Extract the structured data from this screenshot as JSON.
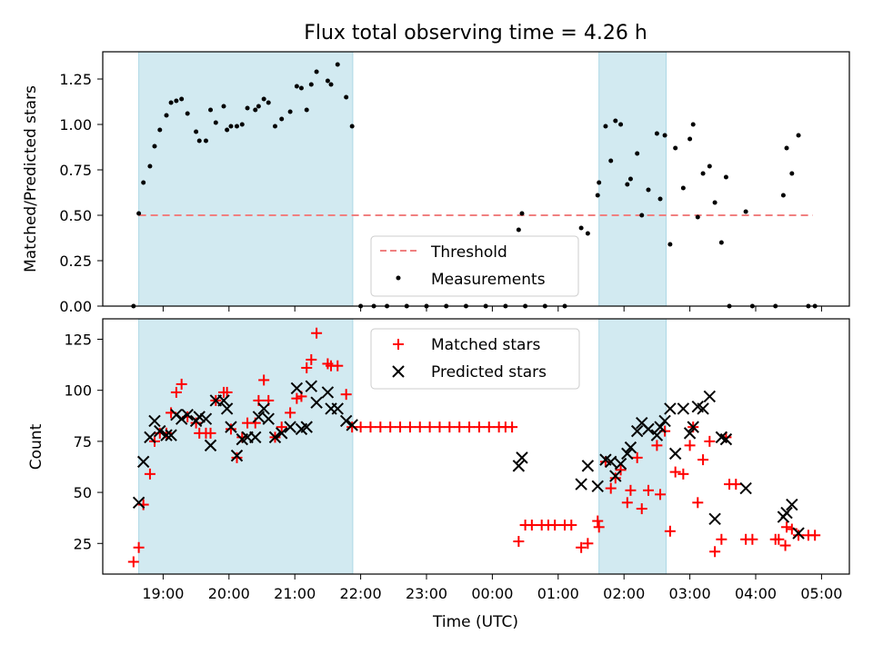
{
  "figure": {
    "title": "Flux total observing time = 4.26 h",
    "xlabel": "Time (UTC)",
    "x_ticks": [
      "19:00",
      "20:00",
      "21:00",
      "22:00",
      "23:00",
      "00:00",
      "01:00",
      "02:00",
      "03:00",
      "04:00",
      "05:00"
    ]
  },
  "chart_data": [
    {
      "type": "scatter",
      "x_unit": "hours after 18:00 UTC",
      "ylabel": "Matched/Predicted stars",
      "ylim": [
        0,
        1.4
      ],
      "y_ticks": [
        "0.00",
        "0.25",
        "0.50",
        "0.75",
        "1.00",
        "1.25"
      ],
      "shaded_intervals": [
        [
          0.63,
          3.88
        ],
        [
          7.62,
          8.64
        ]
      ],
      "threshold": {
        "name": "Threshold",
        "value": 0.5,
        "x_range": [
          0.63,
          10.87
        ],
        "color": "#f08080"
      },
      "legend": {
        "placement": "lower-center",
        "entries": [
          "Threshold",
          "Measurements"
        ]
      },
      "series": [
        {
          "name": "Measurements",
          "color": "#000000",
          "points": [
            [
              0.55,
              0.0
            ],
            [
              0.63,
              0.51
            ],
            [
              0.7,
              0.68
            ],
            [
              0.8,
              0.77
            ],
            [
              0.87,
              0.88
            ],
            [
              0.95,
              0.97
            ],
            [
              1.05,
              1.05
            ],
            [
              1.12,
              1.12
            ],
            [
              1.2,
              1.13
            ],
            [
              1.28,
              1.14
            ],
            [
              1.37,
              1.06
            ],
            [
              1.5,
              0.96
            ],
            [
              1.55,
              0.91
            ],
            [
              1.65,
              0.91
            ],
            [
              1.72,
              1.08
            ],
            [
              1.8,
              1.01
            ],
            [
              1.92,
              1.1
            ],
            [
              1.97,
              0.97
            ],
            [
              2.03,
              0.99
            ],
            [
              2.12,
              0.99
            ],
            [
              2.2,
              1.0
            ],
            [
              2.28,
              1.09
            ],
            [
              2.4,
              1.08
            ],
            [
              2.45,
              1.1
            ],
            [
              2.53,
              1.14
            ],
            [
              2.6,
              1.12
            ],
            [
              2.7,
              0.99
            ],
            [
              2.8,
              1.03
            ],
            [
              2.93,
              1.07
            ],
            [
              3.03,
              1.21
            ],
            [
              3.1,
              1.2
            ],
            [
              3.18,
              1.08
            ],
            [
              3.25,
              1.22
            ],
            [
              3.33,
              1.29
            ],
            [
              3.5,
              1.24
            ],
            [
              3.55,
              1.22
            ],
            [
              3.65,
              1.33
            ],
            [
              3.78,
              1.15
            ],
            [
              3.87,
              0.99
            ],
            [
              4.0,
              0.0
            ],
            [
              4.2,
              0.0
            ],
            [
              4.4,
              0.0
            ],
            [
              4.7,
              0.0
            ],
            [
              5.0,
              0.0
            ],
            [
              5.3,
              0.0
            ],
            [
              5.6,
              0.0
            ],
            [
              5.9,
              0.0
            ],
            [
              6.2,
              0.0
            ],
            [
              6.4,
              0.42
            ],
            [
              6.45,
              0.51
            ],
            [
              6.5,
              0.0
            ],
            [
              6.8,
              0.0
            ],
            [
              7.1,
              0.0
            ],
            [
              7.35,
              0.43
            ],
            [
              7.45,
              0.4
            ],
            [
              7.6,
              0.61
            ],
            [
              7.62,
              0.68
            ],
            [
              7.72,
              0.99
            ],
            [
              7.8,
              0.8
            ],
            [
              7.87,
              1.02
            ],
            [
              7.95,
              1.0
            ],
            [
              8.05,
              0.67
            ],
            [
              8.1,
              0.7
            ],
            [
              8.2,
              0.84
            ],
            [
              8.27,
              0.5
            ],
            [
              8.37,
              0.64
            ],
            [
              8.5,
              0.95
            ],
            [
              8.55,
              0.59
            ],
            [
              8.62,
              0.94
            ],
            [
              8.7,
              0.34
            ],
            [
              8.78,
              0.87
            ],
            [
              8.9,
              0.65
            ],
            [
              9.0,
              0.92
            ],
            [
              9.05,
              1.0
            ],
            [
              9.12,
              0.49
            ],
            [
              9.2,
              0.73
            ],
            [
              9.3,
              0.77
            ],
            [
              9.38,
              0.57
            ],
            [
              9.48,
              0.35
            ],
            [
              9.55,
              0.71
            ],
            [
              9.6,
              0.0
            ],
            [
              9.85,
              0.52
            ],
            [
              9.95,
              0.0
            ],
            [
              10.3,
              0.0
            ],
            [
              10.42,
              0.61
            ],
            [
              10.47,
              0.87
            ],
            [
              10.55,
              0.73
            ],
            [
              10.65,
              0.94
            ],
            [
              10.8,
              0.0
            ],
            [
              10.9,
              0.0
            ]
          ]
        }
      ]
    },
    {
      "type": "scatter",
      "x_unit": "hours after 18:00 UTC",
      "ylabel": "Count",
      "ylim": [
        10,
        135
      ],
      "y_ticks": [
        "25",
        "50",
        "75",
        "100",
        "125"
      ],
      "shaded_intervals": [
        [
          0.63,
          3.88
        ],
        [
          7.62,
          8.64
        ]
      ],
      "legend": {
        "placement": "top-center",
        "entries": [
          "Matched stars",
          "Predicted stars"
        ]
      },
      "series": [
        {
          "name": "Matched stars",
          "color": "#ff0000",
          "marker": "plus",
          "points": [
            [
              0.55,
              16
            ],
            [
              0.63,
              23
            ],
            [
              0.7,
              44
            ],
            [
              0.8,
              59
            ],
            [
              0.87,
              75
            ],
            [
              0.95,
              79
            ],
            [
              1.05,
              79
            ],
            [
              1.12,
              89
            ],
            [
              1.2,
              99
            ],
            [
              1.28,
              103
            ],
            [
              1.37,
              87
            ],
            [
              1.5,
              84
            ],
            [
              1.55,
              79
            ],
            [
              1.65,
              79
            ],
            [
              1.72,
              79
            ],
            [
              1.8,
              95
            ],
            [
              1.92,
              99
            ],
            [
              1.97,
              99
            ],
            [
              2.03,
              81
            ],
            [
              2.12,
              67
            ],
            [
              2.2,
              77
            ],
            [
              2.28,
              84
            ],
            [
              2.4,
              84
            ],
            [
              2.45,
              95
            ],
            [
              2.53,
              105
            ],
            [
              2.6,
              95
            ],
            [
              2.7,
              77
            ],
            [
              2.8,
              82
            ],
            [
              2.93,
              89
            ],
            [
              3.03,
              96
            ],
            [
              3.1,
              97
            ],
            [
              3.18,
              111
            ],
            [
              3.25,
              115
            ],
            [
              3.33,
              128
            ],
            [
              3.5,
              113
            ],
            [
              3.55,
              112
            ],
            [
              3.65,
              112
            ],
            [
              3.78,
              98
            ],
            [
              3.87,
              82
            ],
            [
              4.0,
              82
            ],
            [
              4.15,
              82
            ],
            [
              4.3,
              82
            ],
            [
              4.45,
              82
            ],
            [
              4.6,
              82
            ],
            [
              4.75,
              82
            ],
            [
              4.9,
              82
            ],
            [
              5.05,
              82
            ],
            [
              5.2,
              82
            ],
            [
              5.35,
              82
            ],
            [
              5.5,
              82
            ],
            [
              5.65,
              82
            ],
            [
              5.8,
              82
            ],
            [
              5.95,
              82
            ],
            [
              6.1,
              82
            ],
            [
              6.2,
              82
            ],
            [
              6.3,
              82
            ],
            [
              6.4,
              26
            ],
            [
              6.5,
              34
            ],
            [
              6.6,
              34
            ],
            [
              6.75,
              34
            ],
            [
              6.85,
              34
            ],
            [
              6.95,
              34
            ],
            [
              7.1,
              34
            ],
            [
              7.2,
              34
            ],
            [
              7.35,
              23
            ],
            [
              7.45,
              25
            ],
            [
              7.6,
              36
            ],
            [
              7.62,
              33
            ],
            [
              7.72,
              65
            ],
            [
              7.8,
              52
            ],
            [
              7.87,
              57
            ],
            [
              7.95,
              61
            ],
            [
              8.05,
              45
            ],
            [
              8.1,
              51
            ],
            [
              8.2,
              67
            ],
            [
              8.27,
              42
            ],
            [
              8.37,
              51
            ],
            [
              8.5,
              73
            ],
            [
              8.55,
              49
            ],
            [
              8.62,
              80
            ],
            [
              8.7,
              31
            ],
            [
              8.78,
              60
            ],
            [
              8.9,
              59
            ],
            [
              9.0,
              73
            ],
            [
              9.05,
              82
            ],
            [
              9.12,
              45
            ],
            [
              9.2,
              66
            ],
            [
              9.3,
              75
            ],
            [
              9.38,
              21
            ],
            [
              9.48,
              27
            ],
            [
              9.55,
              77
            ],
            [
              9.6,
              54
            ],
            [
              9.7,
              54
            ],
            [
              9.85,
              27
            ],
            [
              9.95,
              27
            ],
            [
              10.3,
              27
            ],
            [
              10.35,
              27
            ],
            [
              10.45,
              24
            ],
            [
              10.47,
              33
            ],
            [
              10.55,
              32
            ],
            [
              10.65,
              29
            ],
            [
              10.8,
              29
            ],
            [
              10.9,
              29
            ]
          ]
        },
        {
          "name": "Predicted stars",
          "color": "#000000",
          "marker": "x",
          "points": [
            [
              0.63,
              45
            ],
            [
              0.7,
              65
            ],
            [
              0.8,
              77
            ],
            [
              0.87,
              85
            ],
            [
              0.95,
              80
            ],
            [
              1.05,
              78
            ],
            [
              1.12,
              78
            ],
            [
              1.2,
              88
            ],
            [
              1.28,
              86
            ],
            [
              1.37,
              88
            ],
            [
              1.5,
              85
            ],
            [
              1.55,
              87
            ],
            [
              1.65,
              86
            ],
            [
              1.72,
              73
            ],
            [
              1.8,
              95
            ],
            [
              1.92,
              95
            ],
            [
              1.97,
              91
            ],
            [
              2.03,
              82
            ],
            [
              2.12,
              68
            ],
            [
              2.2,
              76
            ],
            [
              2.28,
              77
            ],
            [
              2.4,
              77
            ],
            [
              2.45,
              87
            ],
            [
              2.53,
              91
            ],
            [
              2.6,
              86
            ],
            [
              2.7,
              77
            ],
            [
              2.8,
              79
            ],
            [
              2.93,
              82
            ],
            [
              3.03,
              101
            ],
            [
              3.1,
              81
            ],
            [
              3.18,
              82
            ],
            [
              3.25,
              102
            ],
            [
              3.33,
              94
            ],
            [
              3.5,
              99
            ],
            [
              3.55,
              91
            ],
            [
              3.65,
              91
            ],
            [
              3.78,
              85
            ],
            [
              3.87,
              83
            ],
            [
              6.4,
              63
            ],
            [
              6.45,
              67
            ],
            [
              7.35,
              54
            ],
            [
              7.45,
              63
            ],
            [
              7.6,
              53
            ],
            [
              7.72,
              66
            ],
            [
              7.8,
              65
            ],
            [
              7.87,
              58
            ],
            [
              7.95,
              64
            ],
            [
              8.05,
              69
            ],
            [
              8.1,
              72
            ],
            [
              8.2,
              80
            ],
            [
              8.27,
              84
            ],
            [
              8.37,
              81
            ],
            [
              8.5,
              78
            ],
            [
              8.55,
              82
            ],
            [
              8.62,
              85
            ],
            [
              8.7,
              91
            ],
            [
              8.78,
              69
            ],
            [
              8.9,
              91
            ],
            [
              9.0,
              79
            ],
            [
              9.05,
              82
            ],
            [
              9.12,
              92
            ],
            [
              9.2,
              91
            ],
            [
              9.3,
              97
            ],
            [
              9.38,
              37
            ],
            [
              9.48,
              77
            ],
            [
              9.55,
              76
            ],
            [
              9.85,
              52
            ],
            [
              10.42,
              38
            ],
            [
              10.47,
              40
            ],
            [
              10.55,
              44
            ],
            [
              10.65,
              30
            ]
          ]
        }
      ]
    }
  ]
}
